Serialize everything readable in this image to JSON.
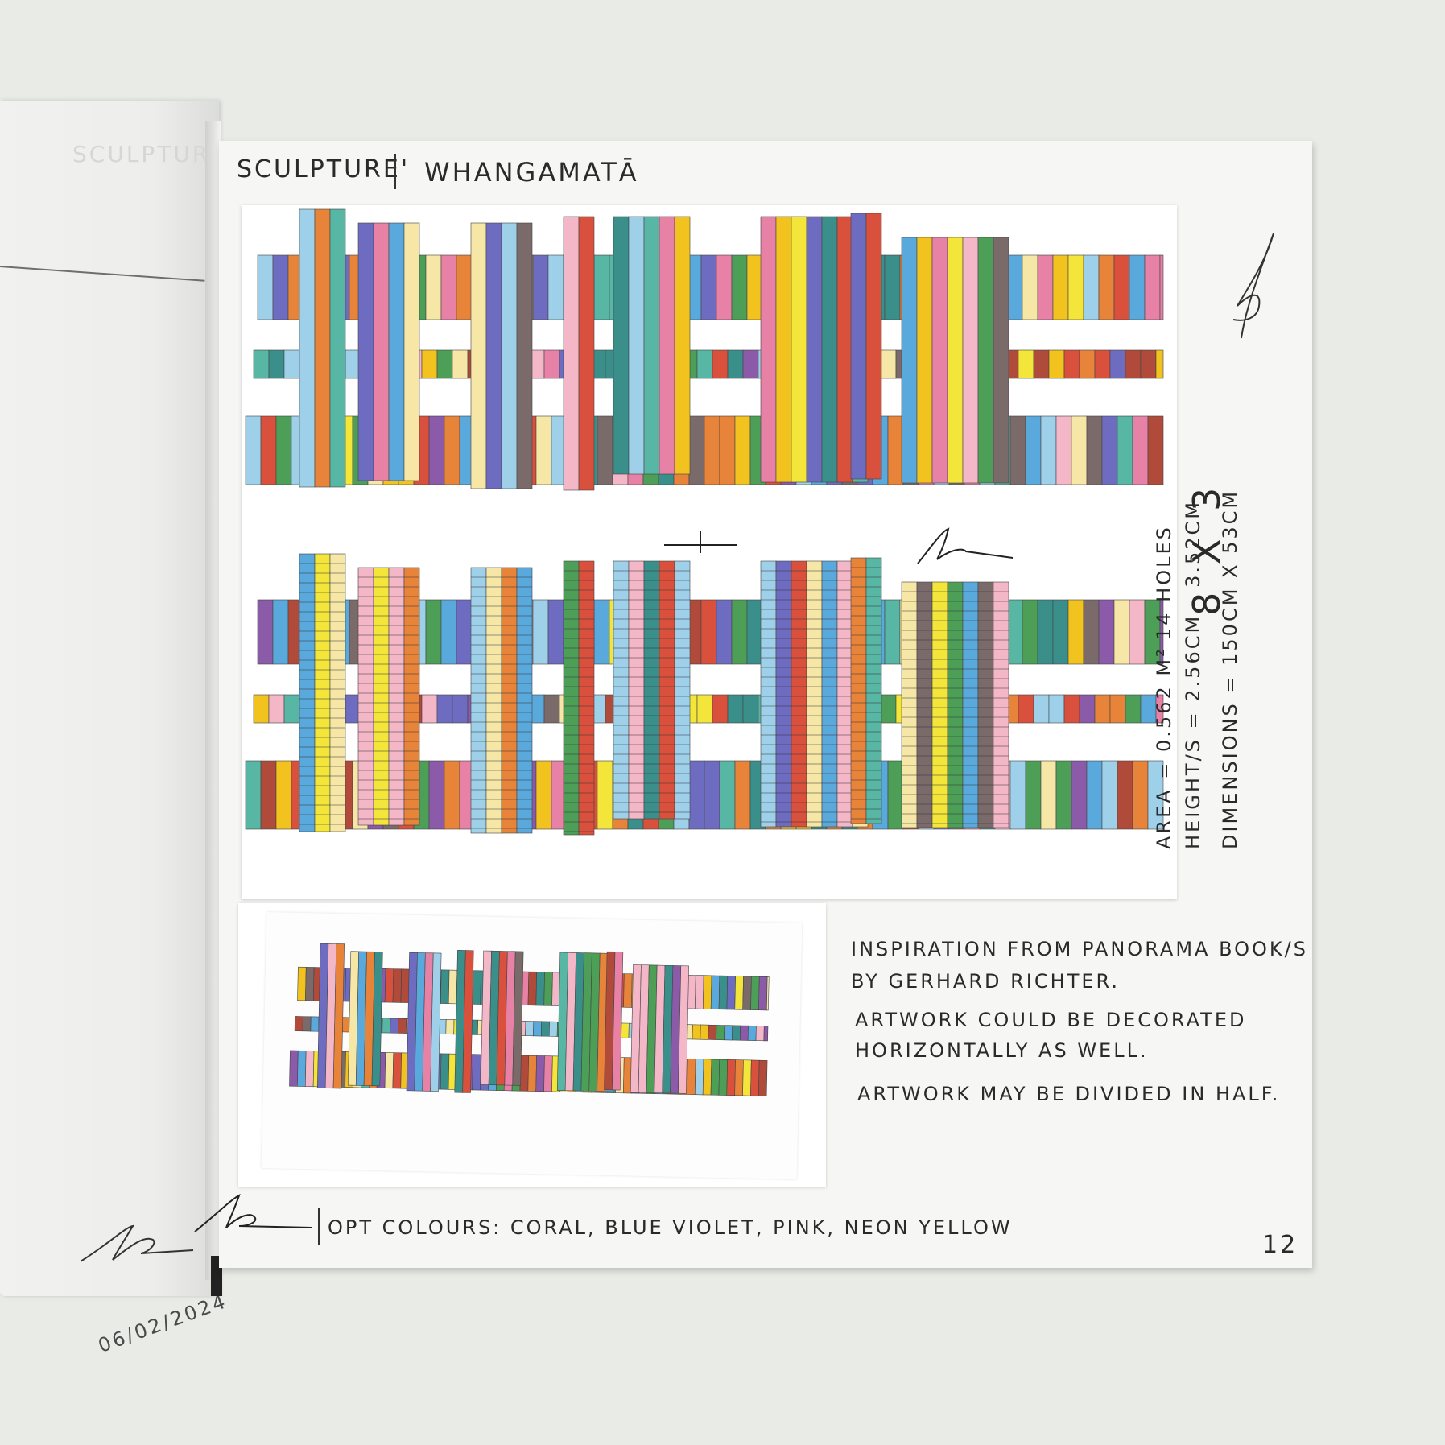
{
  "page": {
    "title_left": "SCULPTURE'",
    "title_right": "WHANGAMATĀ",
    "page_number": "12"
  },
  "left_page": {
    "date": "06/02/2024",
    "ghost_text": "SCULPTURE"
  },
  "side_notes": {
    "holes": "14 HOLES",
    "grid": "8 X 3",
    "area": "AREA = 0.562 M²",
    "heights": "HEIGHT/S = 2.56CM - 3.52CM",
    "dimensions": "DIMENSIONS = 150CM X 53CM"
  },
  "notes": {
    "line1": "INSPIRATION FROM PANORAMA BOOK/S",
    "line2": "BY GERHARD RICHTER.",
    "line3": "ARTWORK COULD BE DECORATED",
    "line4": "HORIZONTALLY AS WELL.",
    "line5": "ARTWORK MAY BE DIVIDED IN HALF."
  },
  "footer": {
    "colours": "OPT COLOURS: CORAL, BLUE VIOLET, PINK, NEON YELLOW"
  },
  "palette": [
    "#d9513c",
    "#e8833a",
    "#f2c21f",
    "#f3e53a",
    "#4d9e57",
    "#3a8f8a",
    "#5aa9dc",
    "#9fd0ea",
    "#6e6cc0",
    "#8b5aa8",
    "#e781a6",
    "#f4b7c8",
    "#f6e7a6",
    "#b04a3a",
    "#7a6a6a",
    "#57b6a4"
  ]
}
